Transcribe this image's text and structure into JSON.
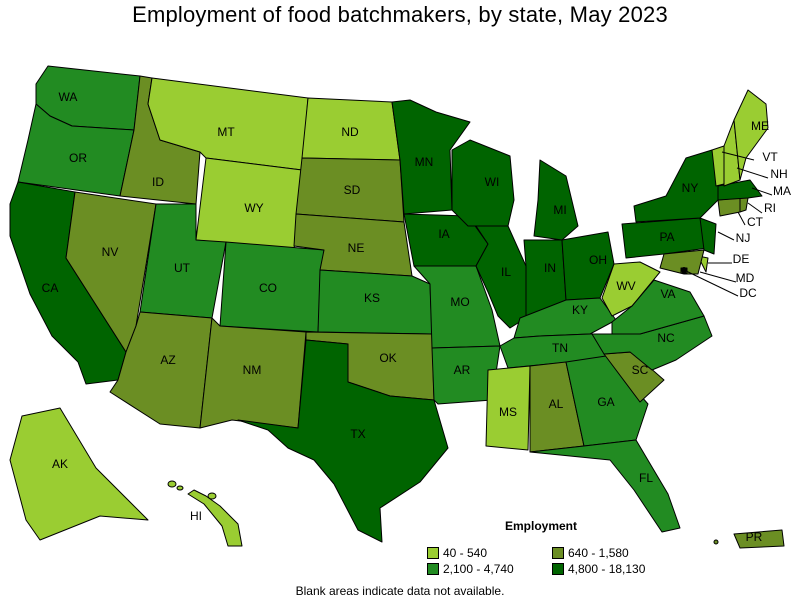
{
  "title": "Employment of food batchmakers, by state, May 2023",
  "legend": {
    "title": "Employment",
    "bins": [
      {
        "label": "40 - 540",
        "color": "#9acd32"
      },
      {
        "label": "640 - 1,580",
        "color": "#6b8e23"
      },
      {
        "label": "2,100 - 4,740",
        "color": "#228b22"
      },
      {
        "label": "4,800 - 18,130",
        "color": "#006400"
      }
    ]
  },
  "footnote": "Blank areas indicate data not available.",
  "states": {
    "WA": {
      "label": "WA",
      "bin": 2
    },
    "OR": {
      "label": "OR",
      "bin": 2
    },
    "CA": {
      "label": "CA",
      "bin": 3
    },
    "ID": {
      "label": "ID",
      "bin": 1
    },
    "NV": {
      "label": "NV",
      "bin": 1
    },
    "MT": {
      "label": "MT",
      "bin": 0
    },
    "WY": {
      "label": "WY",
      "bin": 0
    },
    "UT": {
      "label": "UT",
      "bin": 2
    },
    "AZ": {
      "label": "AZ",
      "bin": 1
    },
    "CO": {
      "label": "CO",
      "bin": 2
    },
    "NM": {
      "label": "NM",
      "bin": 1
    },
    "ND": {
      "label": "ND",
      "bin": 0
    },
    "SD": {
      "label": "SD",
      "bin": 1
    },
    "NE": {
      "label": "NE",
      "bin": 1
    },
    "KS": {
      "label": "KS",
      "bin": 2
    },
    "OK": {
      "label": "OK",
      "bin": 1
    },
    "TX": {
      "label": "TX",
      "bin": 3
    },
    "MN": {
      "label": "MN",
      "bin": 3
    },
    "IA": {
      "label": "IA",
      "bin": 3
    },
    "MO": {
      "label": "MO",
      "bin": 2
    },
    "AR": {
      "label": "AR",
      "bin": 2
    },
    "WI": {
      "label": "WI",
      "bin": 3
    },
    "IL": {
      "label": "IL",
      "bin": 3
    },
    "MI": {
      "label": "MI",
      "bin": 3
    },
    "IN": {
      "label": "IN",
      "bin": 3
    },
    "OH": {
      "label": "OH",
      "bin": 3
    },
    "KY": {
      "label": "KY",
      "bin": 2
    },
    "TN": {
      "label": "TN",
      "bin": 2
    },
    "MS": {
      "label": "MS",
      "bin": 0
    },
    "AL": {
      "label": "AL",
      "bin": 1
    },
    "GA": {
      "label": "GA",
      "bin": 2
    },
    "FL": {
      "label": "FL",
      "bin": 2
    },
    "SC": {
      "label": "SC",
      "bin": 1
    },
    "NC": {
      "label": "NC",
      "bin": 2
    },
    "VA": {
      "label": "VA",
      "bin": 2
    },
    "WV": {
      "label": "WV",
      "bin": 0
    },
    "PA": {
      "label": "PA",
      "bin": 3
    },
    "NY": {
      "label": "NY",
      "bin": 3
    },
    "NJ": {
      "label": "NJ",
      "bin": 3
    },
    "DE": {
      "label": "DE",
      "bin": 0
    },
    "MD": {
      "label": "MD",
      "bin": 1
    },
    "DC": {
      "label": "DC",
      "bin": 1
    },
    "CT": {
      "label": "CT",
      "bin": 1
    },
    "RI": {
      "label": "RI",
      "bin": 1
    },
    "MA": {
      "label": "MA",
      "bin": 3
    },
    "VT": {
      "label": "VT",
      "bin": 0
    },
    "NH": {
      "label": "NH",
      "bin": 0
    },
    "ME": {
      "label": "ME",
      "bin": 0
    },
    "AK": {
      "label": "AK",
      "bin": 0
    },
    "HI": {
      "label": "HI",
      "bin": 0
    },
    "PR": {
      "label": "PR",
      "bin": 1
    }
  }
}
